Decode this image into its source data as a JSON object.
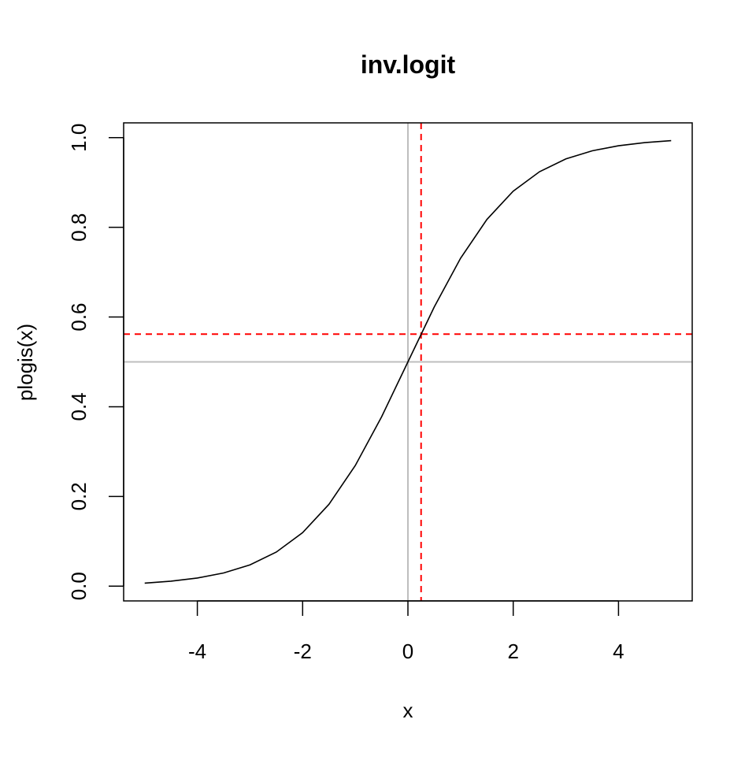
{
  "chart_data": {
    "type": "line",
    "title": "inv.logit",
    "xlabel": "x",
    "ylabel": "plogis(x)",
    "xlim": [
      -5.4,
      5.4
    ],
    "ylim": [
      -0.033,
      1.033
    ],
    "x_ticks": [
      -4,
      -2,
      0,
      2,
      4
    ],
    "x_tick_labels": [
      "-4",
      "-2",
      "0",
      "2",
      "4"
    ],
    "y_ticks": [
      0.0,
      0.2,
      0.4,
      0.6,
      0.8,
      1.0
    ],
    "y_tick_labels": [
      "0.0",
      "0.2",
      "0.4",
      "0.6",
      "0.8",
      "1.0"
    ],
    "grid": false,
    "series": [
      {
        "color": "#000000",
        "x": [
          -5,
          -4.5,
          -4,
          -3.5,
          -3,
          -2.5,
          -2,
          -1.5,
          -1,
          -0.5,
          0,
          0.5,
          1,
          1.5,
          2,
          2.5,
          3,
          3.5,
          4,
          4.5,
          5
        ],
        "y": [
          0.0067,
          0.011,
          0.018,
          0.0293,
          0.0474,
          0.0759,
          0.1192,
          0.1824,
          0.2689,
          0.3775,
          0.5,
          0.6225,
          0.7311,
          0.8176,
          0.8808,
          0.9241,
          0.9526,
          0.9707,
          0.982,
          0.989,
          0.9933
        ]
      }
    ],
    "reference_lines": [
      {
        "orientation": "vertical",
        "value": 0,
        "color": "#bebebe",
        "style": "solid"
      },
      {
        "orientation": "horizontal",
        "value": 0.5,
        "color": "#bebebe",
        "style": "solid"
      },
      {
        "orientation": "vertical",
        "value": 0.25,
        "color": "#ff0000",
        "style": "dashed"
      },
      {
        "orientation": "horizontal",
        "value": 0.562,
        "color": "#ff0000",
        "style": "dashed"
      }
    ]
  }
}
